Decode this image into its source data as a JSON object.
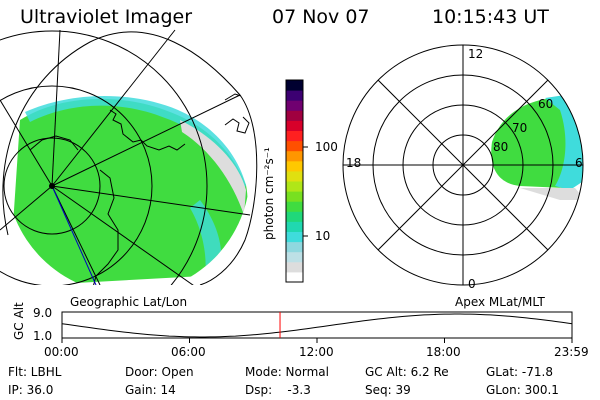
{
  "header": {
    "instrument": "Ultraviolet Imager",
    "date": "07 Nov 07",
    "time": "10:15:43 UT"
  },
  "colorbar": {
    "unit_label": "photon cm⁻²s⁻¹",
    "tick_100": "100",
    "tick_10": "10",
    "colors": [
      "#ffffff",
      "#dddddd",
      "#bde0e6",
      "#8fd8df",
      "#3fdcdc",
      "#20d8b0",
      "#20d87a",
      "#40dc40",
      "#78e020",
      "#b0e618",
      "#e0e010",
      "#ffc800",
      "#ff9600",
      "#ff5000",
      "#ff2020",
      "#d8002a",
      "#a00040",
      "#700070",
      "#3c0072",
      "#000030"
    ]
  },
  "left_map": {
    "caption": "Geographic Lat/Lon"
  },
  "right_map": {
    "caption": "Apex  MLat/MLT",
    "labels": {
      "mlt12": "12",
      "mlt18": "18",
      "mlt6": "6",
      "mlt0": "0",
      "lat60": "60",
      "lat70": "70",
      "lat80": "80"
    }
  },
  "altitude_plot": {
    "ylabel": "GC Alt",
    "y_top": "9.0",
    "y_bottom": "1.0",
    "x_ticks": [
      "00:00",
      "06:00",
      "12:00",
      "18:00",
      "23:59"
    ],
    "current_time_marker_hours": 10.26
  },
  "info_panel": {
    "row1": [
      "Flt: LBHL",
      "Door: Open",
      "Mode: Normal",
      "GC Alt: 6.2 Re",
      "GLat: -71.8"
    ],
    "row2": [
      "IP: 36.0",
      "Gain: 14",
      "Dsp:    -3.3",
      "Seq: 39",
      "GLon: 300.1"
    ]
  },
  "colors": {
    "aurora_green": "#40dc40",
    "aurora_cyan": "#3fdcdc",
    "marker_red": "#ff0000"
  }
}
